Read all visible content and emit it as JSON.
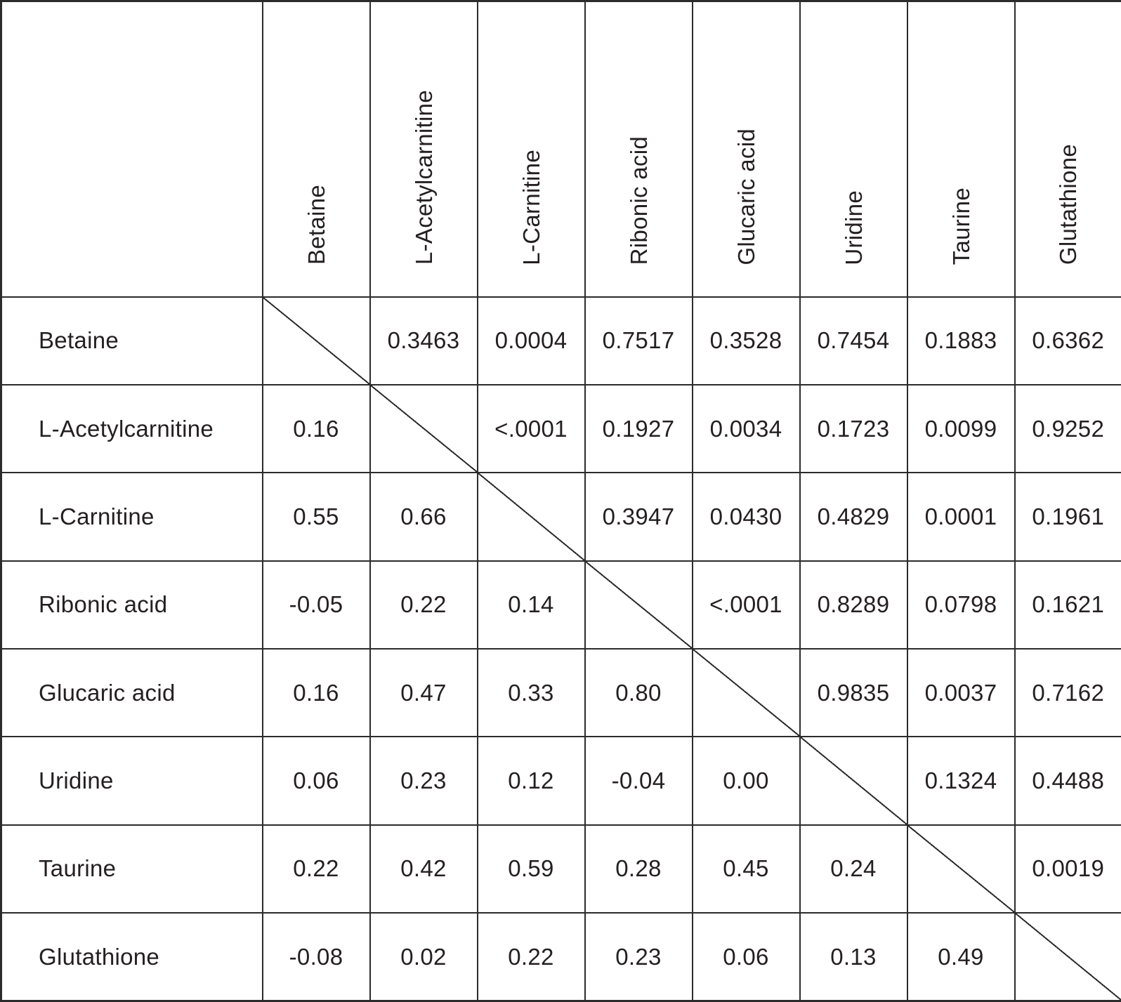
{
  "table": {
    "corner_label": "",
    "columns": [
      "Betaine",
      "L-Acetylcarnitine",
      "L-Carnitine",
      "Ribonic acid",
      "Glucaric acid",
      "Uridine",
      "Taurine",
      "Glutathione"
    ],
    "rows": [
      {
        "label": "Betaine",
        "cells": [
          "",
          "0.3463",
          "0.0004",
          "0.7517",
          "0.3528",
          "0.7454",
          "0.1883",
          "0.6362"
        ]
      },
      {
        "label": "L-Acetylcarnitine",
        "cells": [
          "0.16",
          "",
          "<.0001",
          "0.1927",
          "0.0034",
          "0.1723",
          "0.0099",
          "0.9252"
        ]
      },
      {
        "label": "L-Carnitine",
        "cells": [
          "0.55",
          "0.66",
          "",
          "0.3947",
          "0.0430",
          "0.4829",
          "0.0001",
          "0.1961"
        ]
      },
      {
        "label": "Ribonic acid",
        "cells": [
          "-0.05",
          "0.22",
          "0.14",
          "",
          "<.0001",
          "0.8289",
          "0.0798",
          "0.1621"
        ]
      },
      {
        "label": "Glucaric acid",
        "cells": [
          "0.16",
          "0.47",
          "0.33",
          "0.80",
          "",
          "0.9835",
          "0.0037",
          "0.7162"
        ]
      },
      {
        "label": "Uridine",
        "cells": [
          "0.06",
          "0.23",
          "0.12",
          "-0.04",
          "0.00",
          "",
          "0.1324",
          "0.4488"
        ]
      },
      {
        "label": "Taurine",
        "cells": [
          "0.22",
          "0.42",
          "0.59",
          "0.28",
          "0.45",
          "0.24",
          "",
          "0.0019"
        ]
      },
      {
        "label": "Glutathione",
        "cells": [
          "-0.08",
          "0.02",
          "0.22",
          "0.23",
          "0.06",
          "0.13",
          "0.49",
          ""
        ]
      }
    ],
    "colors": {
      "grid": "#2b2b2b",
      "text": "#241f21",
      "background": "#ffffff"
    }
  }
}
